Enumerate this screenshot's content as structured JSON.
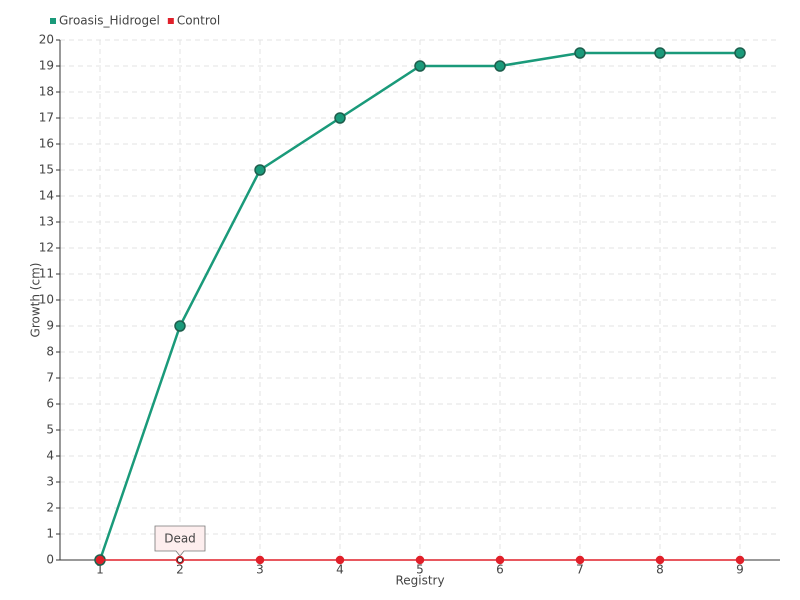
{
  "chart_data": {
    "type": "line",
    "categories": [
      "1",
      "2",
      "3",
      "4",
      "5",
      "6",
      "7",
      "8",
      "9"
    ],
    "series": [
      {
        "name": "Groasis_Hidrogel",
        "color": "#1a9a7a",
        "values": [
          0,
          9,
          15,
          17,
          19,
          19,
          19.5,
          19.5,
          19.5
        ]
      },
      {
        "name": "Control",
        "color": "#e0202a",
        "values": [
          0,
          0,
          0,
          0,
          0,
          0,
          0,
          0,
          0
        ]
      }
    ],
    "ylabel": "Growth (cm)",
    "xlabel": "Registry",
    "ylim": [
      0,
      20
    ],
    "yticks": [
      0,
      1,
      2,
      3,
      4,
      5,
      6,
      7,
      8,
      9,
      10,
      11,
      12,
      13,
      14,
      15,
      16,
      17,
      18,
      19,
      20
    ],
    "grid": true,
    "annotations": [
      {
        "text": "Dead",
        "x": "2",
        "y": 0
      }
    ]
  }
}
